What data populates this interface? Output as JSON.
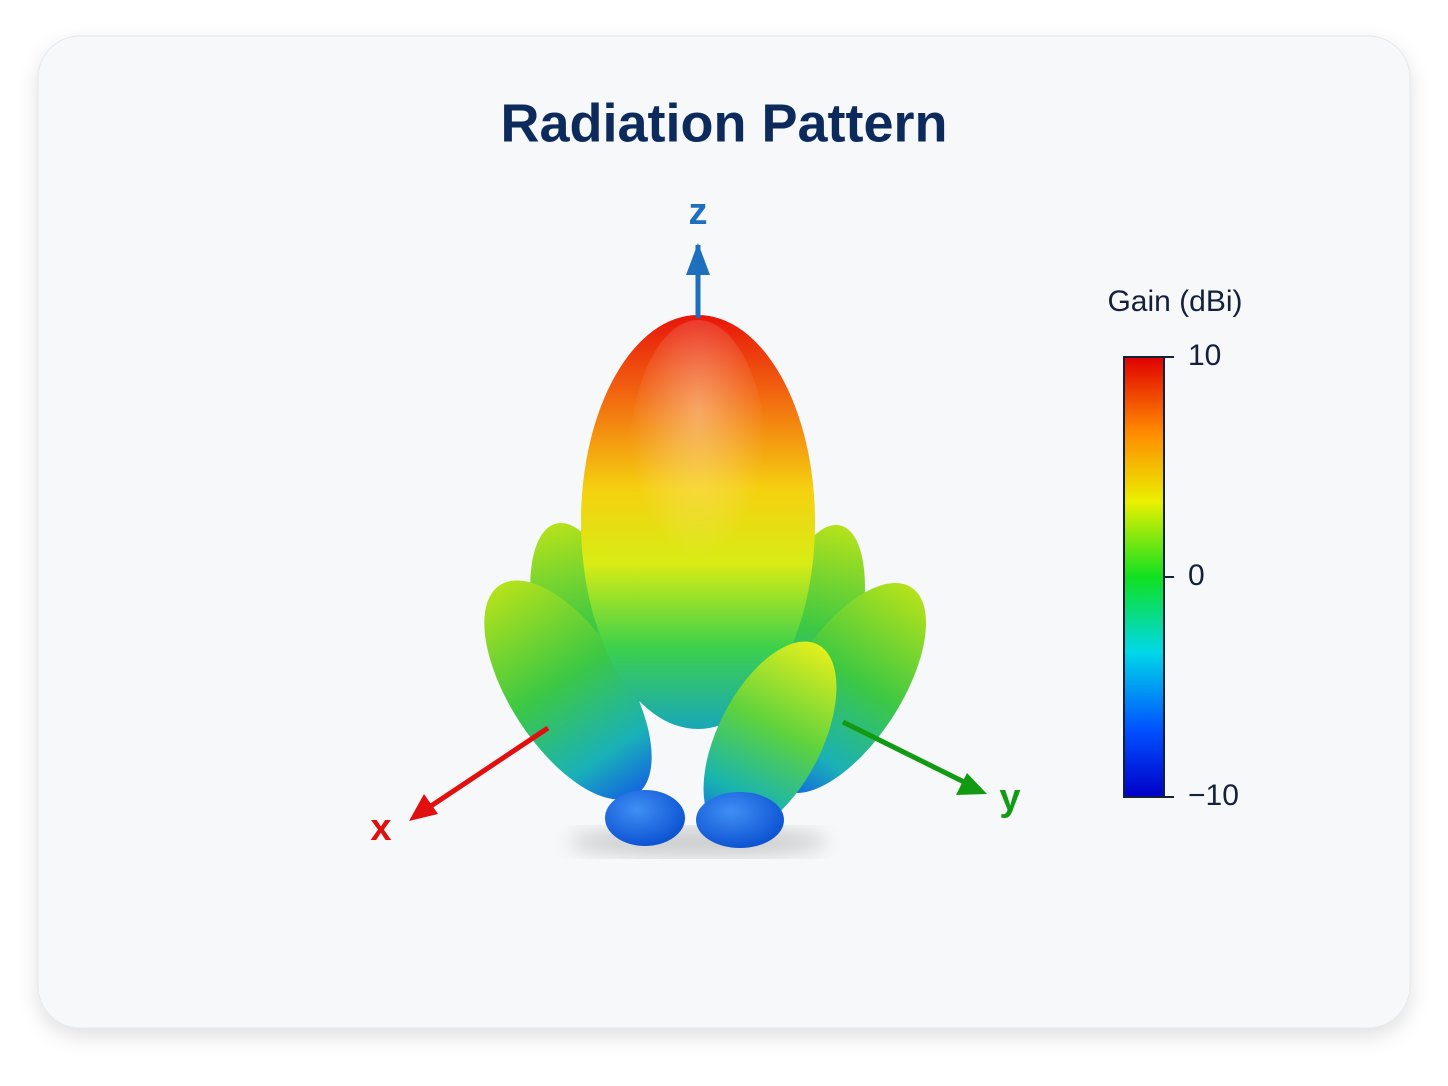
{
  "chart_data": {
    "type": "radiation-pattern-3d",
    "title": "Radiation Pattern",
    "axes": {
      "x": "x",
      "y": "y",
      "z": "z"
    },
    "colorbar": {
      "label": "Gain (dBi)",
      "lim": [
        -10,
        10
      ],
      "ticks": [
        10,
        0,
        {
          "value": -10,
          "label": "−10"
        }
      ]
    }
  }
}
